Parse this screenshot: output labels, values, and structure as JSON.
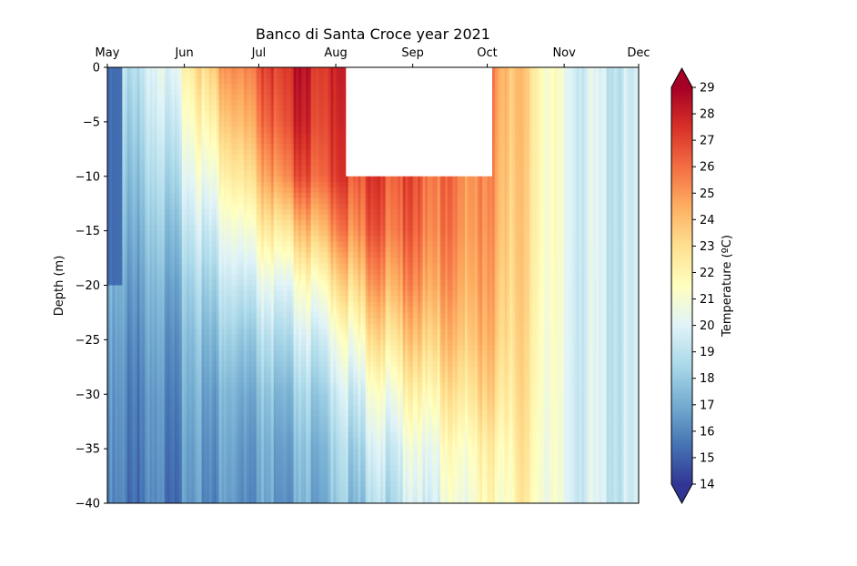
{
  "chart_data": {
    "type": "heatmap",
    "title": "Banco di Santa Croce year 2021",
    "xlabel": "",
    "ylabel": "Depth (m)",
    "x_ticks": [
      "May",
      "Jun",
      "Jul",
      "Aug",
      "Sep",
      "Oct",
      "Nov",
      "Dec"
    ],
    "x_range": [
      "2021-05-01",
      "2021-12-01"
    ],
    "y_ticks": [
      0,
      -5,
      -10,
      -15,
      -20,
      -25,
      -30,
      -35,
      -40
    ],
    "ylim": [
      -40,
      0
    ],
    "colorbar": {
      "label": "Temperature (ºC)",
      "range": [
        14,
        29
      ],
      "ticks": [
        14,
        15,
        16,
        17,
        18,
        19,
        20,
        21,
        22,
        23,
        24,
        25,
        26,
        27,
        28,
        29
      ],
      "colormap": "RdYlBu_r",
      "extend": "both"
    },
    "missing_regions": [
      {
        "from": "2021-05-01",
        "to": "2021-05-07",
        "depth_top": 0,
        "depth_bottom": -20,
        "rendered": "flat-low"
      },
      {
        "from": "2021-08-05",
        "to": "2021-10-03",
        "depth_top": 0,
        "depth_bottom": -10,
        "rendered": "blank"
      }
    ],
    "profiles": [
      {
        "date": "2021-05-07",
        "depth": [
          0,
          -5,
          -10,
          -15,
          -20,
          -25,
          -30,
          -35,
          -40
        ],
        "temperature": [
          18.8,
          18.2,
          17.7,
          17.2,
          16.7,
          16.3,
          16.0,
          15.8,
          15.6
        ]
      },
      {
        "date": "2021-05-20",
        "depth": [
          0,
          -5,
          -10,
          -15,
          -20,
          -25,
          -30,
          -35,
          -40
        ],
        "temperature": [
          19.5,
          18.9,
          18.2,
          17.5,
          16.9,
          16.4,
          16.0,
          15.8,
          15.6
        ]
      },
      {
        "date": "2021-06-01",
        "depth": [
          0,
          -5,
          -10,
          -15,
          -20,
          -25,
          -30,
          -35,
          -40
        ],
        "temperature": [
          21.5,
          20.5,
          19.5,
          18.5,
          17.6,
          17.0,
          16.6,
          16.2,
          16.0
        ]
      },
      {
        "date": "2021-06-15",
        "depth": [
          0,
          -5,
          -10,
          -15,
          -20,
          -25,
          -30,
          -35,
          -40
        ],
        "temperature": [
          24.5,
          23.0,
          21.5,
          20.0,
          18.8,
          17.8,
          17.0,
          16.6,
          16.3
        ]
      },
      {
        "date": "2021-07-01",
        "depth": [
          0,
          -5,
          -10,
          -15,
          -20,
          -25,
          -30,
          -35,
          -40
        ],
        "temperature": [
          26.5,
          25.5,
          24.0,
          22.0,
          20.0,
          18.5,
          17.5,
          16.9,
          16.6
        ]
      },
      {
        "date": "2021-07-15",
        "depth": [
          0,
          -5,
          -10,
          -15,
          -20,
          -25,
          -30,
          -35,
          -40
        ],
        "temperature": [
          28.3,
          27.8,
          26.5,
          23.5,
          20.8,
          19.2,
          18.0,
          17.3,
          16.9
        ]
      },
      {
        "date": "2021-08-01",
        "depth": [
          0,
          -5,
          -10,
          -15,
          -20,
          -25,
          -30,
          -35,
          -40
        ],
        "temperature": [
          27.5,
          27.2,
          26.8,
          25.0,
          22.5,
          20.3,
          18.9,
          18.0,
          17.5
        ]
      },
      {
        "date": "2021-08-15",
        "depth": [
          -10,
          -15,
          -20,
          -25,
          -30,
          -35,
          -40
        ],
        "temperature": [
          27.0,
          26.2,
          24.5,
          22.5,
          20.5,
          19.2,
          18.3
        ]
      },
      {
        "date": "2021-09-01",
        "depth": [
          -10,
          -15,
          -20,
          -25,
          -30,
          -35,
          -40
        ],
        "temperature": [
          26.5,
          26.0,
          25.0,
          23.5,
          21.8,
          20.3,
          19.5
        ]
      },
      {
        "date": "2021-09-15",
        "depth": [
          -10,
          -15,
          -20,
          -25,
          -30,
          -35,
          -40
        ],
        "temperature": [
          25.8,
          25.5,
          24.8,
          23.8,
          22.5,
          21.2,
          20.5
        ]
      },
      {
        "date": "2021-10-01",
        "depth": [
          -10,
          -15,
          -20,
          -25,
          -30,
          -35,
          -40
        ],
        "temperature": [
          25.0,
          24.8,
          24.5,
          24.0,
          23.2,
          22.0,
          21.5
        ]
      },
      {
        "date": "2021-10-05",
        "depth": [
          0,
          -5,
          -10,
          -15,
          -20,
          -25,
          -30,
          -35,
          -40
        ],
        "temperature": [
          25.2,
          25.0,
          24.8,
          24.6,
          24.2,
          23.8,
          23.0,
          22.0,
          21.5
        ]
      },
      {
        "date": "2021-10-15",
        "depth": [
          0,
          -5,
          -10,
          -15,
          -20,
          -25,
          -30,
          -35,
          -40
        ],
        "temperature": [
          23.5,
          23.5,
          23.4,
          23.3,
          23.2,
          23.0,
          22.8,
          22.5,
          22.2
        ]
      },
      {
        "date": "2021-10-26",
        "depth": [
          0,
          -5,
          -10,
          -15,
          -20,
          -25,
          -30,
          -35,
          -40
        ],
        "temperature": [
          21.5,
          21.5,
          21.5,
          21.5,
          21.4,
          21.3,
          21.2,
          21.1,
          21.0
        ]
      },
      {
        "date": "2021-11-01",
        "depth": [
          0,
          -5,
          -10,
          -15,
          -20,
          -25,
          -30,
          -35,
          -40
        ],
        "temperature": [
          20.2,
          20.2,
          20.2,
          20.2,
          20.1,
          20.1,
          20.0,
          20.0,
          20.0
        ]
      },
      {
        "date": "2021-11-15",
        "depth": [
          0,
          -5,
          -10,
          -15,
          -20,
          -25,
          -30,
          -35,
          -40
        ],
        "temperature": [
          19.6,
          19.6,
          19.6,
          19.6,
          19.6,
          19.6,
          19.6,
          19.6,
          19.6
        ]
      },
      {
        "date": "2021-11-30",
        "depth": [
          0,
          -5,
          -10,
          -15,
          -20,
          -25,
          -30,
          -35,
          -40
        ],
        "temperature": [
          19.0,
          19.0,
          19.0,
          19.0,
          19.0,
          19.0,
          19.0,
          19.0,
          19.0
        ]
      }
    ]
  }
}
